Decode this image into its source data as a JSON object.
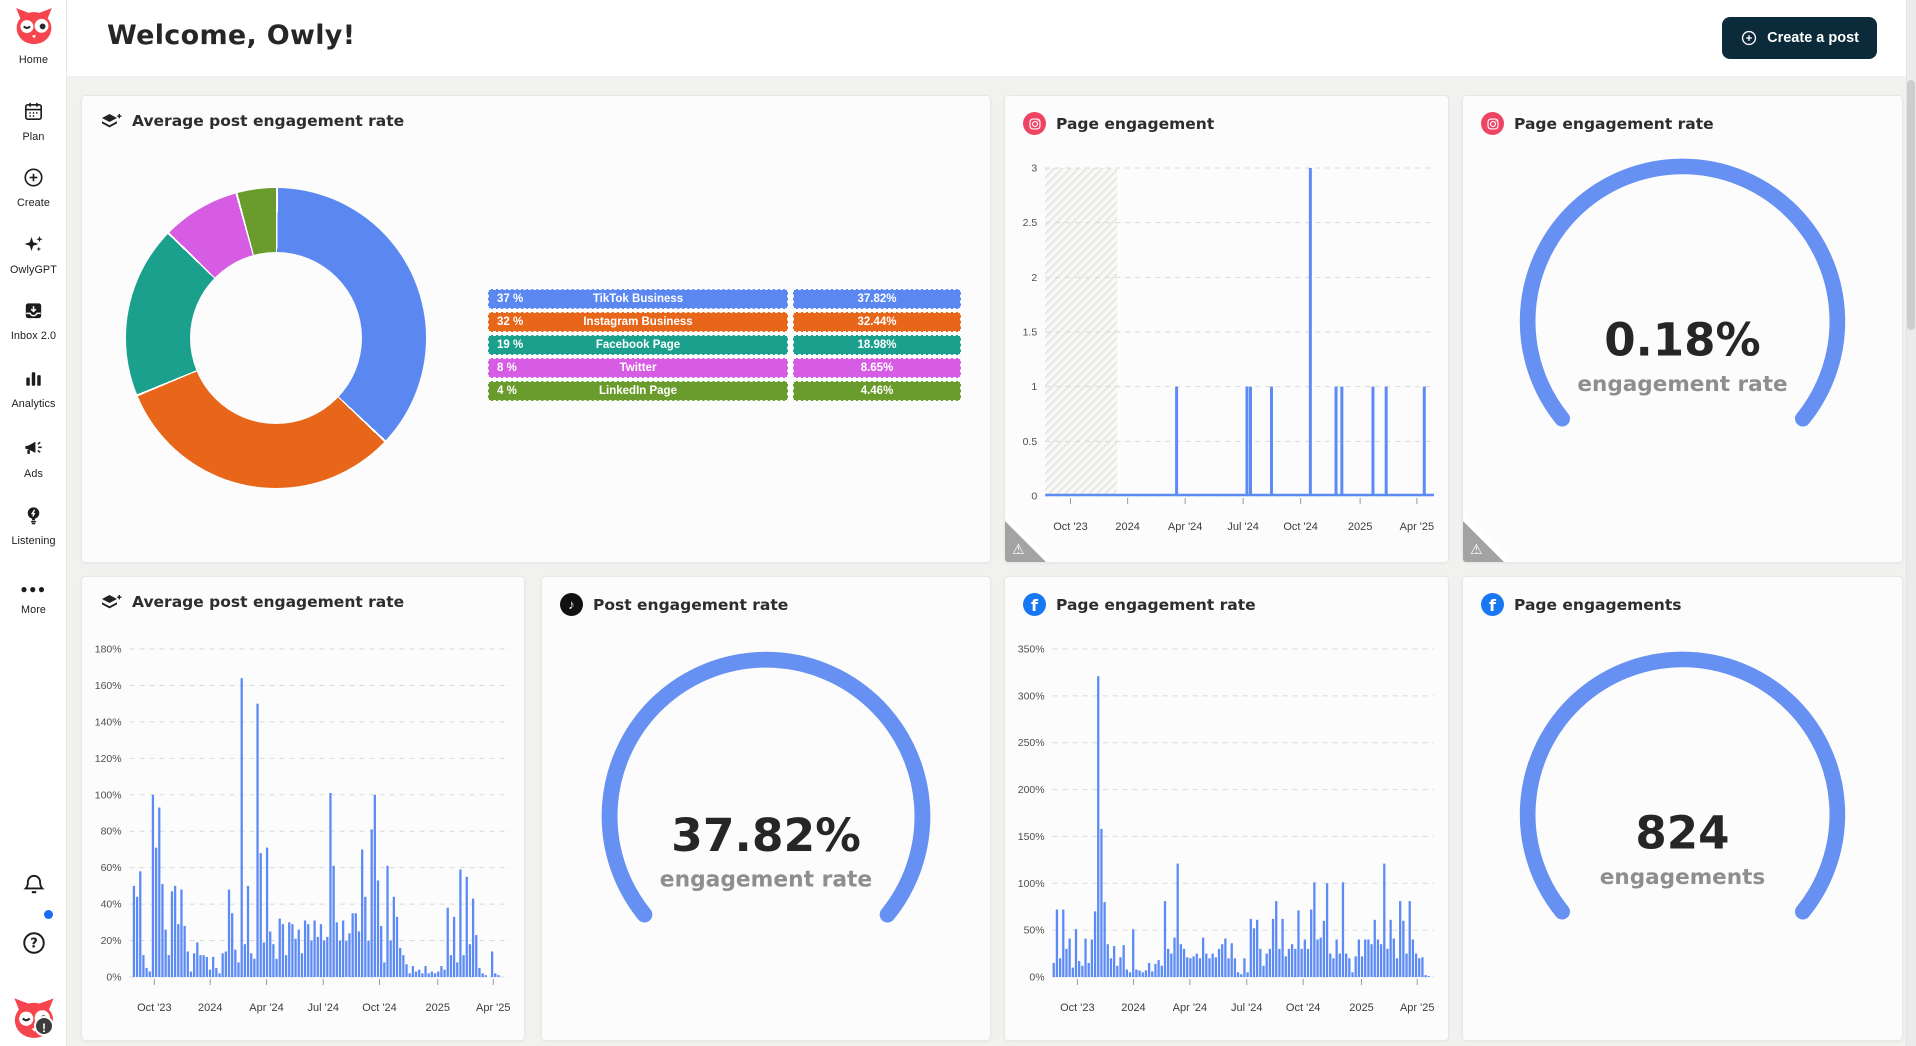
{
  "header": {
    "title": "Welcome, Owly!",
    "create_post_label": "Create a post"
  },
  "sidebar": {
    "items": [
      {
        "label": "Home",
        "icon": "owl-logo"
      },
      {
        "label": "Plan",
        "icon": "calendar"
      },
      {
        "label": "Create",
        "icon": "plus-circle"
      },
      {
        "label": "OwlyGPT",
        "icon": "sparkles"
      },
      {
        "label": "Inbox 2.0",
        "icon": "inbox"
      },
      {
        "label": "Analytics",
        "icon": "bar-chart"
      },
      {
        "label": "Ads",
        "icon": "megaphone"
      },
      {
        "label": "Listening",
        "icon": "lightbulb"
      },
      {
        "label": "More",
        "icon": "ellipsis"
      }
    ]
  },
  "colors": {
    "accent_blue": "#5c8bf5",
    "button_navy": "#0b2b3b",
    "owl_red": "#f6454e",
    "facebook_blue": "#1877f2",
    "instagram_pink": "#ee4464",
    "grid": "#d9d9d7"
  },
  "chart_data": [
    {
      "type": "pie",
      "title": "Average post engagement rate",
      "icon": "layers-plus",
      "labels": [
        "TikTok Business",
        "Instagram Business",
        "Facebook Page",
        "Twitter",
        "LinkedIn Page"
      ],
      "values": [
        37.82,
        32.44,
        18.98,
        8.65,
        4.46
      ],
      "pct_labels": [
        "37 %",
        "32 %",
        "19 %",
        "8 %",
        "4 %"
      ],
      "value_labels": [
        "37.82%",
        "32.44%",
        "18.98%",
        "8.65%",
        "4.46%"
      ],
      "colors": [
        "#5b87f0",
        "#e7661a",
        "#1aa08c",
        "#d75ce4",
        "#6a9c2d"
      ],
      "donut": true,
      "legend_position": "right"
    },
    {
      "type": "line",
      "title": "Page engagement",
      "icon": "instagram",
      "ylim": [
        0,
        3
      ],
      "yticks": [
        0,
        0.5,
        1,
        1.5,
        2,
        2.5,
        3
      ],
      "y_suffix": "",
      "xticks": [
        [
          "Oct '23",
          0.065
        ],
        [
          "2024",
          0.212
        ],
        [
          "Apr '24",
          0.36
        ],
        [
          "Jul '24",
          0.509
        ],
        [
          "Oct '24",
          0.657
        ],
        [
          "2025",
          0.81
        ],
        [
          "Apr '25",
          0.956
        ]
      ],
      "spikes": [
        [
          0.338,
          1
        ],
        [
          0.519,
          1
        ],
        [
          0.528,
          1
        ],
        [
          0.582,
          1
        ],
        [
          0.682,
          3
        ],
        [
          0.748,
          1
        ],
        [
          0.763,
          1
        ],
        [
          0.843,
          1
        ],
        [
          0.877,
          1
        ],
        [
          0.975,
          1
        ]
      ],
      "hatch": [
        0.0,
        0.185
      ],
      "grid": "dashed",
      "warning": true
    },
    {
      "type": "gauge",
      "title": "Page engagement rate",
      "icon": "instagram",
      "value": "0.18%",
      "label": "engagement rate",
      "warning": true
    },
    {
      "type": "bar",
      "title": "Average post engagement rate",
      "icon": "layers-plus",
      "ylim": [
        0,
        180
      ],
      "yticks": [
        0,
        20,
        40,
        60,
        80,
        100,
        120,
        140,
        160,
        180
      ],
      "y_suffix": "%",
      "xticks": [
        [
          "Oct '23",
          0.065
        ],
        [
          "2024",
          0.212
        ],
        [
          "Apr '24",
          0.36
        ],
        [
          "Jul '24",
          0.509
        ],
        [
          "Oct '24",
          0.657
        ],
        [
          "2025",
          0.81
        ],
        [
          "Apr '25",
          0.956
        ]
      ],
      "grid": "dashed",
      "values": [
        0,
        50,
        44,
        58,
        12,
        5,
        3,
        100,
        71,
        93,
        51,
        26,
        12,
        47,
        50,
        29,
        48,
        28,
        14,
        3,
        13,
        19,
        12,
        12,
        11,
        4,
        11,
        5,
        2,
        13,
        14,
        48,
        35,
        15,
        8,
        164,
        18,
        50,
        13,
        10,
        150,
        68,
        19,
        71,
        25,
        18,
        10,
        32,
        29,
        12,
        30,
        29,
        21,
        26,
        13,
        31,
        29,
        20,
        31,
        22,
        29,
        20,
        22,
        101,
        61,
        30,
        20,
        31,
        20,
        24,
        35,
        35,
        25,
        70,
        44,
        20,
        81,
        100,
        53,
        28,
        8,
        61,
        20,
        44,
        33,
        16,
        12,
        7,
        2,
        6,
        3,
        4,
        2,
        6,
        2,
        3,
        2,
        3,
        6,
        4,
        38,
        12,
        33,
        8,
        59,
        12,
        55,
        18,
        43,
        23,
        5,
        2,
        1,
        0,
        14,
        2,
        1,
        0,
        0,
        0
      ]
    },
    {
      "type": "gauge",
      "title": "Post engagement rate",
      "icon": "tiktok",
      "value": "37.82%",
      "label": "engagement rate"
    },
    {
      "type": "bar",
      "title": "Page engagement rate",
      "icon": "facebook",
      "ylim": [
        0,
        350
      ],
      "yticks": [
        0,
        50,
        100,
        150,
        200,
        250,
        300,
        350
      ],
      "y_suffix": "%",
      "xticks": [
        [
          "Oct '23",
          0.065
        ],
        [
          "2024",
          0.212
        ],
        [
          "Apr '24",
          0.36
        ],
        [
          "Jul '24",
          0.509
        ],
        [
          "Oct '24",
          0.657
        ],
        [
          "2025",
          0.81
        ],
        [
          "Apr '25",
          0.956
        ]
      ],
      "grid": "dashed",
      "values": [
        15,
        72,
        20,
        72,
        30,
        41,
        10,
        51,
        17,
        12,
        41,
        15,
        40,
        70,
        321,
        158,
        80,
        35,
        20,
        33,
        12,
        21,
        34,
        8,
        5,
        51,
        8,
        7,
        5,
        7,
        15,
        6,
        14,
        18,
        12,
        81,
        30,
        25,
        42,
        121,
        35,
        30,
        21,
        20,
        22,
        25,
        20,
        42,
        25,
        20,
        25,
        21,
        30,
        35,
        41,
        20,
        36,
        20,
        5,
        3,
        20,
        5,
        62,
        52,
        61,
        30,
        12,
        25,
        30,
        62,
        81,
        30,
        62,
        22,
        30,
        35,
        30,
        71,
        30,
        40,
        30,
        72,
        101,
        40,
        42,
        60,
        100,
        25,
        20,
        40,
        25,
        101,
        25,
        20,
        5,
        22,
        40,
        22,
        40,
        40,
        35,
        61,
        40,
        35,
        121,
        30,
        61,
        41,
        20,
        81,
        60,
        25,
        81,
        40,
        25,
        20,
        21,
        2,
        1,
        0
      ]
    },
    {
      "type": "gauge",
      "title": "Page engagements",
      "icon": "facebook",
      "value": "824",
      "label": "engagements"
    }
  ]
}
